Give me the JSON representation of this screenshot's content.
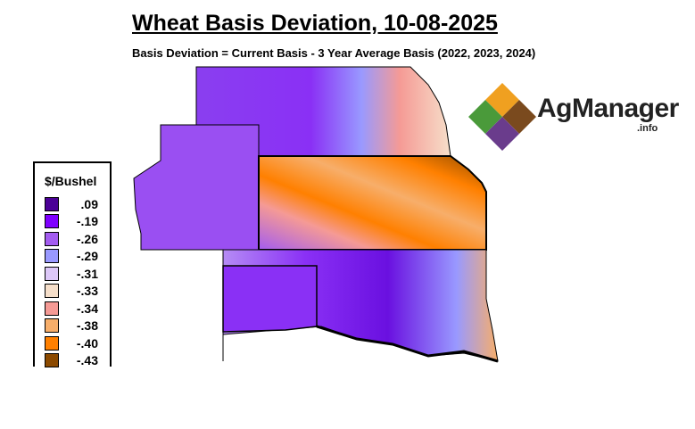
{
  "title": "Wheat Basis Deviation, 10-08-2025",
  "subtitle": "Basis Deviation = Current Basis - 3 Year Average Basis (2022, 2023, 2024)",
  "legend": {
    "title": "$/Bushel",
    "items": [
      {
        "label": ".09",
        "color": "#4b0096"
      },
      {
        "label": "-.19",
        "color": "#7f00ff"
      },
      {
        "label": "-.26",
        "color": "#a35cf0"
      },
      {
        "label": "-.29",
        "color": "#9999ff"
      },
      {
        "label": "-.31",
        "color": "#ddc8f8"
      },
      {
        "label": "-.33",
        "color": "#f6dfca"
      },
      {
        "label": "-.34",
        "color": "#f59a95"
      },
      {
        "label": "-.38",
        "color": "#f7ae6a"
      },
      {
        "label": "-.40",
        "color": "#ff8000"
      },
      {
        "label": "-.43",
        "color": "#8c4a00"
      }
    ]
  },
  "logo": {
    "name": "AgManager",
    "suffix": ".info"
  }
}
